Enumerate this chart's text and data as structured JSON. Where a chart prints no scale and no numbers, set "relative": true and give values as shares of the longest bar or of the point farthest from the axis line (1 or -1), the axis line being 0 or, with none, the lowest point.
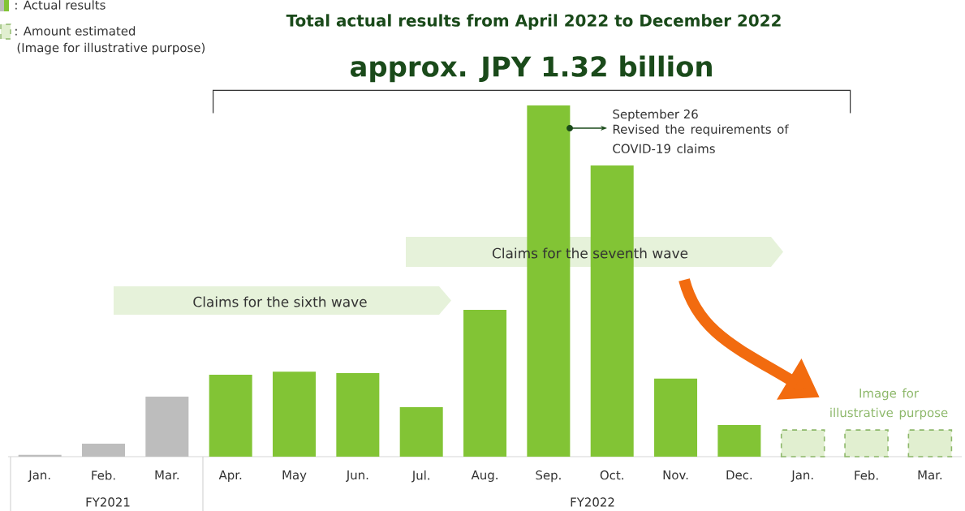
{
  "chart_data": {
    "type": "bar",
    "relative": true,
    "title": "Total actual results from April 2022 to December 2022",
    "subtitle": "approx. JPY 1.32 billion",
    "categories": [
      "Jan.",
      "Feb.",
      "Mar.",
      "Apr.",
      "May",
      "Jun.",
      "Jul.",
      "Aug.",
      "Sep.",
      "Oct.",
      "Nov.",
      "Dec.",
      "Jan.",
      "Feb.",
      "Mar."
    ],
    "series": [
      {
        "color": "#bdbdbd",
        "values": [
          0.005,
          0.037,
          0.171,
          null,
          null,
          null,
          null,
          null,
          null,
          null,
          null,
          null,
          null,
          null,
          null
        ]
      },
      {
        "name": ": Actual results",
        "color": "#82c435",
        "values": [
          null,
          null,
          null,
          0.233,
          0.242,
          0.238,
          0.141,
          0.418,
          1,
          0.829,
          0.222,
          0.09,
          null,
          null,
          null
        ]
      },
      {
        "name": ": Amount estimated",
        "color": "#e1efd0",
        "line_style": "dashed",
        "values": [
          null,
          null,
          null,
          null,
          null,
          null,
          null,
          null,
          null,
          null,
          null,
          null,
          0.076,
          0.076,
          0.076
        ]
      }
    ],
    "legend": "top left",
    "annotations": [
      "September 26",
      "Revised the requirements of COVID-19 claims",
      "Claims for the seventh wave",
      "Claims for the sixth wave",
      "Image for illustrative purpose",
      "FY2021",
      "FY2022",
      "(Image for illustrative purpose)"
    ]
  }
}
